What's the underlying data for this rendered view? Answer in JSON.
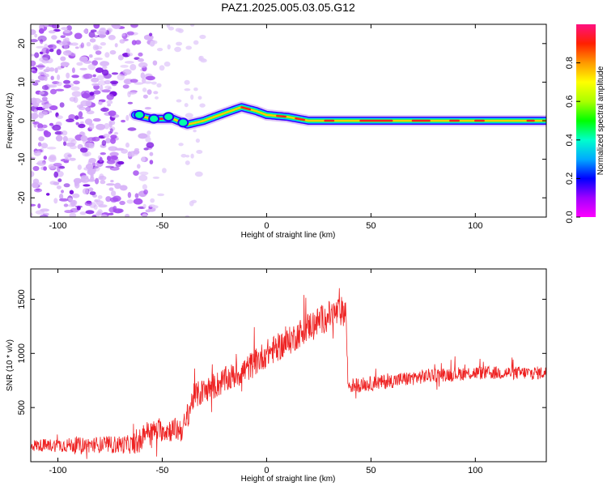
{
  "title": "PAZ1.2025.005.03.05.G12",
  "colors": {
    "snr_line": "#ee2222",
    "ridge_core": "#ff2020",
    "scatter": "#8a2be2",
    "axis": "#000000"
  },
  "chart_data": [
    {
      "type": "heatmap",
      "title": "PAZ1.2025.005.03.05.G12",
      "xlabel": "Height of straight line (km)",
      "ylabel": "Frequency (Hz)",
      "xlim": [
        -113,
        134
      ],
      "ylim": [
        -25,
        25
      ],
      "x_ticks": [
        -100,
        -50,
        0,
        50,
        100
      ],
      "y_ticks": [
        -20,
        -10,
        0,
        10,
        20
      ],
      "colorbar": {
        "label": "Normalized spectral amplitude",
        "range": [
          0,
          1
        ],
        "ticks": [
          "0.0",
          "0.2",
          "0.4",
          "0.6",
          "0.8"
        ],
        "colormap": "rainbow (magenta-blue-cyan-green-yellow-orange-red-pink)"
      },
      "ridge": {
        "x": [
          -63,
          -55,
          -45,
          -38,
          -30,
          -20,
          -12,
          -5,
          0,
          10,
          20,
          30,
          60,
          90,
          134
        ],
        "y": [
          1.5,
          0.5,
          0.5,
          -1.0,
          0.0,
          2.0,
          3.5,
          2.5,
          1.5,
          1.0,
          0.0,
          0.0,
          0.0,
          0.0,
          0.0
        ]
      },
      "noise_region": [
        -113,
        -63
      ]
    },
    {
      "type": "line",
      "xlabel": "Height of straight line (km)",
      "ylabel": "SNR (10 * v/v)",
      "xlim": [
        -113,
        134
      ],
      "ylim": [
        0,
        1780
      ],
      "x_ticks": [
        -100,
        -50,
        0,
        50,
        100
      ],
      "y_ticks": [
        500,
        1000,
        1500
      ],
      "trend": {
        "x": [
          -113,
          -60,
          -59,
          -40,
          -35,
          -20,
          -10,
          0,
          10,
          20,
          30,
          38,
          39,
          50,
          80,
          100,
          134
        ],
        "y": [
          150,
          160,
          280,
          300,
          600,
          750,
          850,
          1000,
          1100,
          1250,
          1350,
          1400,
          700,
          720,
          800,
          820,
          820
        ]
      },
      "noise_amplitude": {
        "x": [
          -113,
          -60,
          -40,
          0,
          38,
          39,
          134
        ],
        "y": [
          55,
          90,
          120,
          130,
          140,
          70,
          60
        ]
      }
    }
  ]
}
